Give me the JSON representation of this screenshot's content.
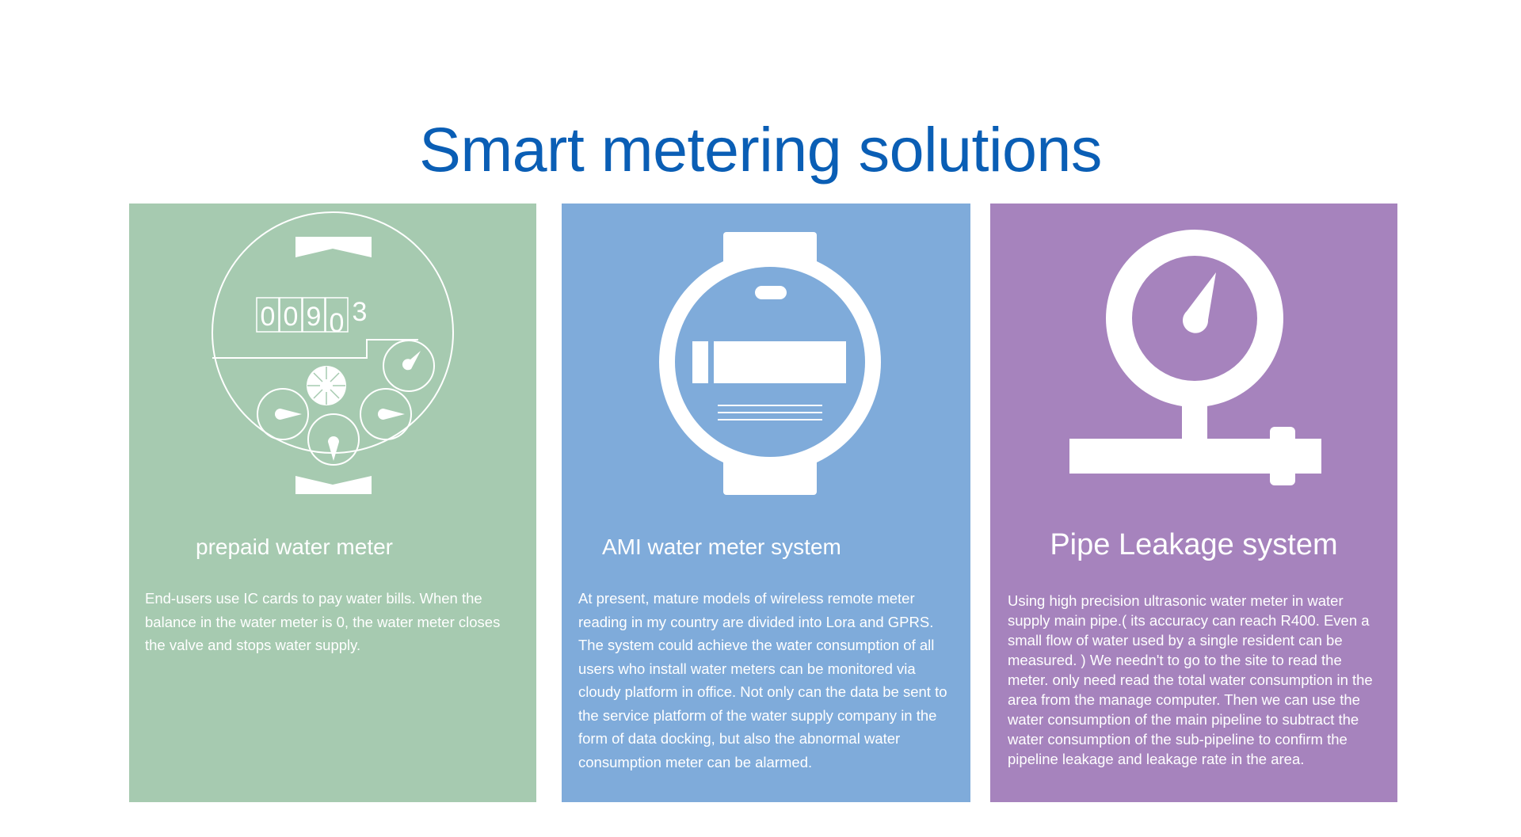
{
  "page": {
    "title": "Smart metering solutions",
    "title_color": "#0a5eb5"
  },
  "cards": [
    {
      "title": "prepaid water meter",
      "background": "#a6cab0",
      "icon": "water-meter-dial-icon",
      "meter_digits": [
        "0",
        "0",
        "9",
        "0",
        "3"
      ],
      "body": "End-users use IC cards to pay water bills. When the balance in the water meter is 0, the water meter closes the valve and stops water supply."
    },
    {
      "title": "AMI water meter system",
      "background": "#7fabda",
      "icon": "smart-meter-watch-icon",
      "body": "At present, mature models of wireless remote meter reading in my country are divided into Lora and GPRS. The system could achieve the water consumption of all users who install water meters can be monitored via cloudy platform in office. Not only can the data be sent to the service platform of the water supply company in the form of data docking, but also the abnormal water consumption meter can be alarmed."
    },
    {
      "title": "Pipe Leakage system",
      "background": "#a683bd",
      "icon": "pressure-gauge-pipe-icon",
      "body": "Using high precision ultrasonic water meter in water supply main pipe.( its accuracy can reach R400. Even a small flow of water used by a single resident can be measured. )  We needn't to go to the site to read the meter. only need read the total water consumption in the area from the manage computer.  Then we can use the water consumption of the main pipeline to subtract the water consumption of the sub-pipeline to confirm the pipeline leakage and leakage rate in the area."
    }
  ]
}
